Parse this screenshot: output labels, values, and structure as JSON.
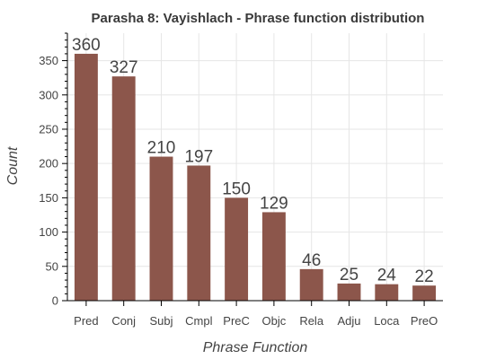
{
  "chart_data": {
    "type": "bar",
    "title": "Parasha 8: Vayishlach - Phrase function distribution",
    "xlabel": "Phrase Function",
    "ylabel": "Count",
    "categories": [
      "Pred",
      "Conj",
      "Subj",
      "Cmpl",
      "PreC",
      "Objc",
      "Rela",
      "Adju",
      "Loca",
      "PreO"
    ],
    "values": [
      360,
      327,
      210,
      197,
      150,
      129,
      46,
      25,
      24,
      22
    ],
    "ylim": [
      0,
      390
    ],
    "yticks": [
      0,
      50,
      100,
      150,
      200,
      250,
      300,
      350
    ],
    "grid": true,
    "bar_color": "#8c564b"
  }
}
